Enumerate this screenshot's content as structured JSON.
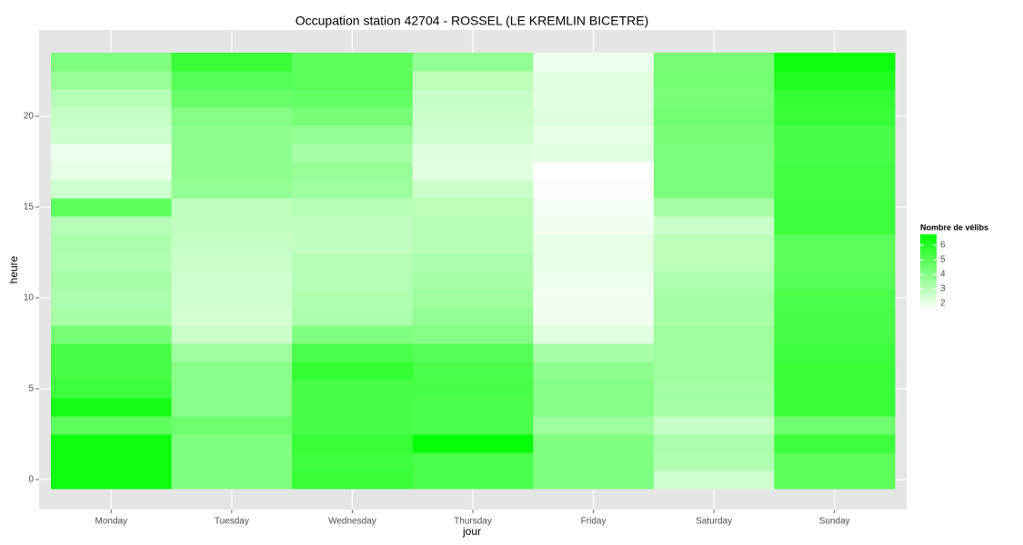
{
  "chart_data": {
    "type": "heatmap",
    "title": "Occupation station 42704 - ROSSEL (LE KREMLIN BICETRE)",
    "x_label": "jour",
    "y_label": "heure",
    "categories": [
      "Monday",
      "Tuesday",
      "Wednesday",
      "Thursday",
      "Friday",
      "Saturday",
      "Sunday"
    ],
    "y": [
      0,
      1,
      2,
      3,
      4,
      5,
      6,
      7,
      8,
      9,
      10,
      11,
      12,
      13,
      14,
      15,
      16,
      17,
      18,
      19,
      20,
      21,
      22,
      23
    ],
    "values": [
      [
        6.5,
        6.5,
        6.5,
        4.8,
        6.3,
        5.5,
        5.3,
        5.3,
        4.3,
        3.3,
        3.2,
        3.3,
        3.1,
        3.2,
        3.0,
        4.8,
        2.5,
        2.0,
        1.9,
        2.5,
        2.7,
        3.0,
        3.6,
        4.1
      ],
      [
        4.1,
        4.1,
        4.1,
        4.5,
        3.9,
        3.9,
        3.9,
        3.5,
        2.6,
        2.4,
        2.5,
        2.5,
        2.6,
        2.7,
        2.8,
        2.8,
        3.7,
        3.8,
        3.8,
        3.8,
        4.0,
        4.6,
        5.0,
        5.6
      ],
      [
        5.6,
        5.5,
        5.6,
        5.3,
        5.3,
        5.3,
        5.7,
        5.2,
        4.1,
        3.2,
        3.1,
        3.0,
        3.0,
        2.8,
        2.8,
        3.0,
        3.5,
        3.6,
        3.3,
        3.7,
        4.3,
        4.7,
        4.9,
        4.8
      ],
      [
        5.2,
        5.2,
        6.6,
        5.2,
        5.2,
        5.3,
        5.2,
        5.0,
        4.0,
        3.7,
        3.5,
        3.3,
        3.2,
        3.0,
        3.0,
        2.9,
        2.6,
        2.1,
        2.2,
        2.5,
        2.6,
        2.7,
        2.9,
        3.7
      ],
      [
        4.1,
        4.1,
        4.1,
        3.5,
        4.0,
        4.0,
        3.8,
        3.3,
        2.1,
        1.8,
        1.8,
        1.9,
        2.0,
        2.0,
        1.8,
        1.7,
        1.6,
        1.5,
        2.1,
        2.0,
        2.2,
        2.1,
        2.1,
        1.9
      ],
      [
        2.5,
        3.1,
        3.2,
        2.7,
        3.3,
        3.4,
        3.5,
        3.5,
        3.5,
        3.3,
        3.3,
        3.1,
        2.9,
        2.9,
        2.6,
        3.3,
        4.2,
        4.2,
        4.2,
        4.3,
        4.4,
        4.3,
        4.4,
        4.3
      ],
      [
        4.9,
        4.9,
        5.5,
        4.5,
        5.6,
        5.6,
        5.6,
        5.5,
        5.3,
        5.3,
        5.2,
        5.0,
        4.9,
        4.9,
        5.5,
        5.5,
        5.4,
        5.4,
        5.3,
        5.3,
        5.6,
        5.7,
        6.1,
        6.5
      ]
    ],
    "ylim": [
      -1.65,
      24.75
    ],
    "yticks": [
      0,
      5,
      10,
      15,
      20
    ],
    "grid": true,
    "colorbar": {
      "title": "Nombre de vélibs",
      "low": "#ffffff",
      "high": "#00ff00",
      "lim": [
        1.5,
        6.75
      ],
      "ticks": [
        2,
        3,
        4,
        5,
        6
      ]
    }
  }
}
